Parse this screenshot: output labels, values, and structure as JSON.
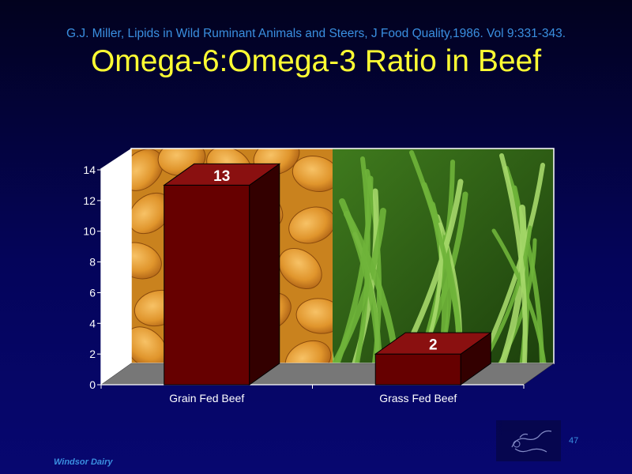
{
  "citation": "G.J. Miller, Lipids in Wild Ruminant Animals and Steers, J Food Quality,1986. Vol 9:331-343.",
  "title": "Omega-6:Omega-3 Ratio in Beef",
  "footer": "Windsor Dairy",
  "page_number": "47",
  "colors": {
    "background": "#04045a",
    "title": "#ffff33",
    "citation": "#3a8fe0",
    "bar_front": "#660000",
    "bar_top": "#8a1010",
    "bar_side": "#330000",
    "floor": "#777777"
  },
  "chart_data": {
    "type": "bar",
    "categories": [
      "Grain Fed Beef",
      "Grass Fed Beef"
    ],
    "values": [
      13,
      2
    ],
    "ylim": [
      0,
      14
    ],
    "yticks": [
      "0",
      "2",
      "4",
      "6",
      "8",
      "10",
      "12",
      "14"
    ],
    "data_labels": [
      "13",
      "2"
    ],
    "title": "",
    "xlabel": "",
    "ylabel": "",
    "grid": false,
    "style": "3d",
    "backgrounds": [
      "corn-kernels-photo",
      "grass-blades-photo"
    ]
  }
}
